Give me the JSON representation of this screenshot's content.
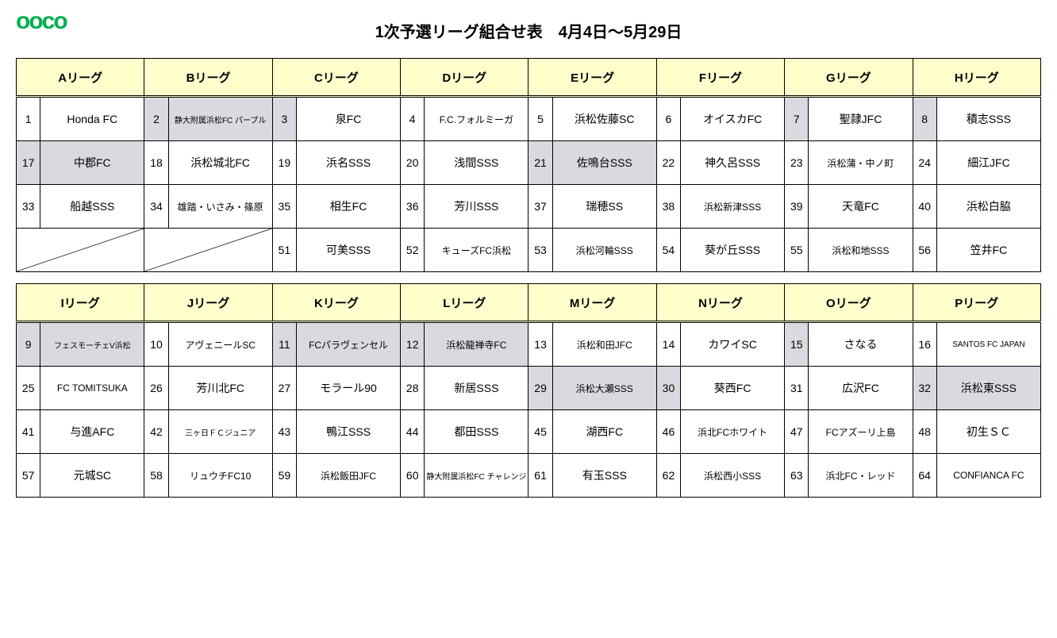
{
  "logo_text": "ooco",
  "title": "1次予選リーグ組合せ表　4月4日〜5月29日",
  "colors": {
    "header_bg": "#ffffcc",
    "shade_bg": "#d9d9e0",
    "logo": "#00b050",
    "border": "#000000",
    "page_bg": "#ffffff"
  },
  "leagues_top": [
    {
      "name": "Aリーグ",
      "cells": [
        {
          "n": 1,
          "t": "Honda FC",
          "shadeN": false,
          "shadeT": false
        },
        {
          "n": 17,
          "t": "中郡FC",
          "shadeN": true,
          "shadeT": true
        },
        {
          "n": 33,
          "t": "船越SSS",
          "shadeN": false,
          "shadeT": false
        },
        {
          "n": null,
          "t": null,
          "diag": true
        }
      ]
    },
    {
      "name": "Bリーグ",
      "cells": [
        {
          "n": 2,
          "t": "静大附属浜松FC パープル",
          "shadeN": true,
          "shadeT": true,
          "size": "small"
        },
        {
          "n": 18,
          "t": "浜松城北FC",
          "shadeN": false,
          "shadeT": false
        },
        {
          "n": 34,
          "t": "雄踏・いさみ・篠原",
          "shadeN": false,
          "shadeT": false,
          "size": "med"
        },
        {
          "n": null,
          "t": null,
          "diag": true
        }
      ]
    },
    {
      "name": "Cリーグ",
      "cells": [
        {
          "n": 3,
          "t": "泉FC",
          "shadeN": true,
          "shadeT": false
        },
        {
          "n": 19,
          "t": "浜名SSS",
          "shadeN": false,
          "shadeT": false
        },
        {
          "n": 35,
          "t": "相生FC",
          "shadeN": false,
          "shadeT": false
        },
        {
          "n": 51,
          "t": "可美SSS",
          "shadeN": false,
          "shadeT": false
        }
      ]
    },
    {
      "name": "Dリーグ",
      "cells": [
        {
          "n": 4,
          "t": "F.C.フォルミーガ",
          "shadeN": false,
          "shadeT": false,
          "size": "med"
        },
        {
          "n": 20,
          "t": "浅間SSS",
          "shadeN": false,
          "shadeT": false
        },
        {
          "n": 36,
          "t": "芳川SSS",
          "shadeN": false,
          "shadeT": false
        },
        {
          "n": 52,
          "t": "キューズFC浜松",
          "shadeN": false,
          "shadeT": false,
          "size": "med"
        }
      ]
    },
    {
      "name": "Eリーグ",
      "cells": [
        {
          "n": 5,
          "t": "浜松佐藤SC",
          "shadeN": false,
          "shadeT": false
        },
        {
          "n": 21,
          "t": "佐鳴台SSS",
          "shadeN": true,
          "shadeT": true
        },
        {
          "n": 37,
          "t": "瑞穂SS",
          "shadeN": false,
          "shadeT": false
        },
        {
          "n": 53,
          "t": "浜松河輪SSS",
          "shadeN": false,
          "shadeT": false,
          "size": "med"
        }
      ]
    },
    {
      "name": "Fリーグ",
      "cells": [
        {
          "n": 6,
          "t": "オイスカFC",
          "shadeN": false,
          "shadeT": false
        },
        {
          "n": 22,
          "t": "神久呂SSS",
          "shadeN": false,
          "shadeT": false
        },
        {
          "n": 38,
          "t": "浜松新津SSS",
          "shadeN": false,
          "shadeT": false,
          "size": "med"
        },
        {
          "n": 54,
          "t": "葵が丘SSS",
          "shadeN": false,
          "shadeT": false
        }
      ]
    },
    {
      "name": "Gリーグ",
      "cells": [
        {
          "n": 7,
          "t": "聖隷JFC",
          "shadeN": true,
          "shadeT": false
        },
        {
          "n": 23,
          "t": "浜松蒲・中ノ町",
          "shadeN": false,
          "shadeT": false,
          "size": "med"
        },
        {
          "n": 39,
          "t": "天竜FC",
          "shadeN": false,
          "shadeT": false
        },
        {
          "n": 55,
          "t": "浜松和地SSS",
          "shadeN": false,
          "shadeT": false,
          "size": "med"
        }
      ]
    },
    {
      "name": "Hリーグ",
      "cells": [
        {
          "n": 8,
          "t": "積志SSS",
          "shadeN": true,
          "shadeT": false
        },
        {
          "n": 24,
          "t": "細江JFC",
          "shadeN": false,
          "shadeT": false
        },
        {
          "n": 40,
          "t": "浜松白脇",
          "shadeN": false,
          "shadeT": false
        },
        {
          "n": 56,
          "t": "笠井FC",
          "shadeN": false,
          "shadeT": false
        }
      ]
    }
  ],
  "leagues_bottom": [
    {
      "name": "Iリーグ",
      "cells": [
        {
          "n": 9,
          "t": "フェスモーチェV浜松",
          "shadeN": true,
          "shadeT": true,
          "size": "small"
        },
        {
          "n": 25,
          "t": "FC TOMITSUKA",
          "shadeN": false,
          "shadeT": false,
          "size": "med"
        },
        {
          "n": 41,
          "t": "与進AFC",
          "shadeN": false,
          "shadeT": false
        },
        {
          "n": 57,
          "t": "元城SC",
          "shadeN": false,
          "shadeT": false
        }
      ]
    },
    {
      "name": "Jリーグ",
      "cells": [
        {
          "n": 10,
          "t": "アヴェニールSC",
          "shadeN": false,
          "shadeT": false,
          "size": "med"
        },
        {
          "n": 26,
          "t": "芳川北FC",
          "shadeN": false,
          "shadeT": false
        },
        {
          "n": 42,
          "t": "三ヶ日ＦＣジュニア",
          "shadeN": false,
          "shadeT": false,
          "size": "small"
        },
        {
          "n": 58,
          "t": "リュウチFC10",
          "shadeN": false,
          "shadeT": false,
          "size": "med"
        }
      ]
    },
    {
      "name": "Kリーグ",
      "cells": [
        {
          "n": 11,
          "t": "FCパラヴェンセル",
          "shadeN": true,
          "shadeT": true,
          "size": "med"
        },
        {
          "n": 27,
          "t": "モラール90",
          "shadeN": false,
          "shadeT": false
        },
        {
          "n": 43,
          "t": "鴨江SSS",
          "shadeN": false,
          "shadeT": false
        },
        {
          "n": 59,
          "t": "浜松飯田JFC",
          "shadeN": false,
          "shadeT": false,
          "size": "med"
        }
      ]
    },
    {
      "name": "Lリーグ",
      "cells": [
        {
          "n": 12,
          "t": "浜松龍禅寺FC",
          "shadeN": true,
          "shadeT": true,
          "size": "med"
        },
        {
          "n": 28,
          "t": "新居SSS",
          "shadeN": false,
          "shadeT": false
        },
        {
          "n": 44,
          "t": "都田SSS",
          "shadeN": false,
          "shadeT": false
        },
        {
          "n": 60,
          "t": "静大附属浜松FC チャレンジ",
          "shadeN": false,
          "shadeT": false,
          "size": "small"
        }
      ]
    },
    {
      "name": "Mリーグ",
      "cells": [
        {
          "n": 13,
          "t": "浜松和田JFC",
          "shadeN": false,
          "shadeT": false,
          "size": "med"
        },
        {
          "n": 29,
          "t": "浜松大瀬SSS",
          "shadeN": true,
          "shadeT": true,
          "size": "med"
        },
        {
          "n": 45,
          "t": "湖西FC",
          "shadeN": false,
          "shadeT": false
        },
        {
          "n": 61,
          "t": "有玉SSS",
          "shadeN": false,
          "shadeT": false
        }
      ]
    },
    {
      "name": "Nリーグ",
      "cells": [
        {
          "n": 14,
          "t": "カワイSC",
          "shadeN": false,
          "shadeT": false
        },
        {
          "n": 30,
          "t": "葵西FC",
          "shadeN": true,
          "shadeT": false
        },
        {
          "n": 46,
          "t": "浜北FCホワイト",
          "shadeN": false,
          "shadeT": false,
          "size": "med"
        },
        {
          "n": 62,
          "t": "浜松西小SSS",
          "shadeN": false,
          "shadeT": false,
          "size": "med"
        }
      ]
    },
    {
      "name": "Oリーグ",
      "cells": [
        {
          "n": 15,
          "t": "さなる",
          "shadeN": true,
          "shadeT": false
        },
        {
          "n": 31,
          "t": "広沢FC",
          "shadeN": false,
          "shadeT": false
        },
        {
          "n": 47,
          "t": "FCアズーリ上島",
          "shadeN": false,
          "shadeT": false,
          "size": "med"
        },
        {
          "n": 63,
          "t": "浜北FC・レッド",
          "shadeN": false,
          "shadeT": false,
          "size": "med"
        }
      ]
    },
    {
      "name": "Pリーグ",
      "cells": [
        {
          "n": 16,
          "t": "SANTOS FC JAPAN",
          "shadeN": false,
          "shadeT": false,
          "size": "small"
        },
        {
          "n": 32,
          "t": "浜松東SSS",
          "shadeN": true,
          "shadeT": true
        },
        {
          "n": 48,
          "t": "初生ＳＣ",
          "shadeN": false,
          "shadeT": false
        },
        {
          "n": 64,
          "t": "CONFIANCA FC",
          "shadeN": false,
          "shadeT": false,
          "size": "med"
        }
      ]
    }
  ]
}
